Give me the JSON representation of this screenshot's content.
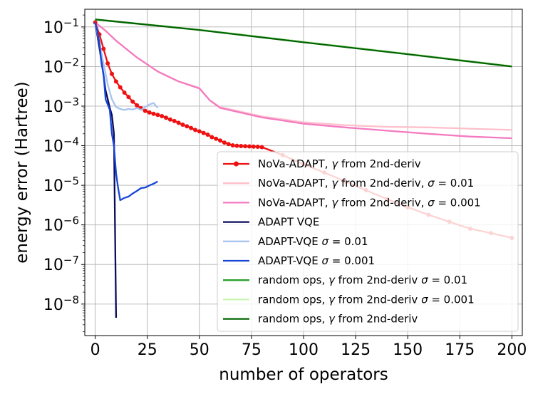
{
  "chart_data": {
    "type": "line",
    "title": "",
    "xlabel": "number of operators",
    "ylabel": "energy error (Hartree)",
    "yscale": "log",
    "xlim": [
      -5,
      205
    ],
    "ylim": [
      1.6e-09,
      0.28
    ],
    "grid": true,
    "legend_position": "lower-right",
    "x_ticks": [
      0,
      25,
      50,
      75,
      100,
      125,
      150,
      175,
      200
    ],
    "y_ticks": [
      {
        "value": 0.1,
        "base": "10",
        "exp": "−1"
      },
      {
        "value": 0.01,
        "base": "10",
        "exp": "−2"
      },
      {
        "value": 0.001,
        "base": "10",
        "exp": "−3"
      },
      {
        "value": 0.0001,
        "base": "10",
        "exp": "−4"
      },
      {
        "value": 1e-05,
        "base": "10",
        "exp": "−5"
      },
      {
        "value": 1e-06,
        "base": "10",
        "exp": "−6"
      },
      {
        "value": 1e-07,
        "base": "10",
        "exp": "−7"
      },
      {
        "value": 1e-08,
        "base": "10",
        "exp": "−8"
      }
    ],
    "series": [
      {
        "id": "nova-sigma001",
        "name": "NoVa-ADAPT, γ from 2nd-deriv, σ = 0.01",
        "color": "#ffc0cb",
        "marker": false,
        "x": [
          0,
          5,
          10,
          20,
          30,
          40,
          50,
          55,
          60,
          80,
          100,
          120,
          140,
          160,
          180,
          200
        ],
        "y": [
          0.13,
          0.08,
          0.045,
          0.017,
          0.0075,
          0.0042,
          0.0029,
          0.0014,
          0.00095,
          0.00055,
          0.00039,
          0.00033,
          0.0003,
          0.00029,
          0.00027,
          0.00025
        ]
      },
      {
        "id": "nova-sigma0001",
        "name": "NoVa-ADAPT, γ from 2nd-deriv, σ = 0.001",
        "color": "#f47ac0",
        "marker": false,
        "x": [
          0,
          5,
          10,
          20,
          30,
          40,
          50,
          55,
          60,
          80,
          100,
          120,
          140,
          160,
          180,
          200
        ],
        "y": [
          0.13,
          0.08,
          0.045,
          0.017,
          0.0075,
          0.0042,
          0.0028,
          0.0014,
          0.0009,
          0.00052,
          0.00036,
          0.00029,
          0.00024,
          0.0002,
          0.00017,
          0.000155
        ]
      },
      {
        "id": "nova",
        "name": "NoVa-ADAPT, γ from 2nd-deriv",
        "color": "#ee1111",
        "marker": true,
        "x": [
          0,
          2,
          4,
          6,
          8,
          10,
          12,
          14,
          16,
          18,
          20,
          22,
          24,
          26,
          28,
          30,
          32,
          34,
          36,
          38,
          40,
          42,
          44,
          46,
          48,
          50,
          52,
          54,
          56,
          58,
          60,
          62,
          64,
          66,
          68,
          70,
          72,
          74,
          76,
          78,
          80,
          90,
          100,
          110,
          120,
          130,
          140,
          150,
          160,
          170,
          180,
          190,
          200
        ],
        "y": [
          0.13,
          0.065,
          0.028,
          0.012,
          0.0065,
          0.0042,
          0.003,
          0.0022,
          0.0017,
          0.0013,
          0.00105,
          0.00088,
          0.00076,
          0.00069,
          0.00064,
          0.0006,
          0.00056,
          0.00051,
          0.00046,
          0.00042,
          0.00038,
          0.00034,
          0.00031,
          0.00028,
          0.00025,
          0.00023,
          0.00021,
          0.00019,
          0.000165,
          0.00015,
          0.000135,
          0.00012,
          0.00011,
          0.000102,
          9.95e-05,
          9.8e-05,
          9.7e-05,
          9.6e-05,
          9.5e-05,
          9.4e-05,
          9.2e-05,
          5.8e-05,
          3.4e-05,
          2.1e-05,
          1.25e-05,
          7.5e-06,
          4.5e-06,
          2.8e-06,
          1.8e-06,
          1.2e-06,
          8e-07,
          6.2e-07,
          4.7e-07
        ]
      },
      {
        "id": "adapt-vqe",
        "name": "ADAPT VQE",
        "color": "#0b0b5c",
        "marker": false,
        "x": [
          0,
          2,
          4,
          5,
          6,
          7,
          8,
          9,
          10
        ],
        "y": [
          0.13,
          0.03,
          0.006,
          0.0025,
          0.0015,
          0.0009,
          0.0006,
          0.0002,
          4.5e-09
        ]
      },
      {
        "id": "adapt-sigma001",
        "name": "ADAPT-VQE σ = 0.01",
        "color": "#a8c4f0",
        "marker": false,
        "x": [
          0,
          2,
          4,
          6,
          8,
          10,
          12,
          14,
          16,
          18,
          20,
          22,
          24,
          26,
          28,
          30
        ],
        "y": [
          0.13,
          0.04,
          0.012,
          0.0035,
          0.0015,
          0.00095,
          0.00085,
          0.0008,
          0.00085,
          0.00082,
          0.0009,
          0.0008,
          0.00095,
          0.0011,
          0.0012,
          0.0009
        ]
      },
      {
        "id": "adapt-sigma0001",
        "name": "ADAPT-VQE σ = 0.001",
        "color": "#1846d8",
        "marker": false,
        "x": [
          0,
          1,
          2,
          3,
          4,
          5,
          6,
          7,
          8,
          9,
          10,
          11,
          12,
          14,
          16,
          18,
          20,
          22,
          24,
          26,
          28,
          30
        ],
        "y": [
          0.13,
          0.08,
          0.04,
          0.012,
          0.0065,
          0.0015,
          0.0011,
          0.0008,
          0.0002,
          0.0001,
          2e-05,
          8.5e-06,
          4.2e-06,
          4.8e-06,
          5.2e-06,
          6.2e-06,
          7.2e-06,
          8.5e-06,
          8.8e-06,
          9.9e-06,
          1.1e-05,
          1.25e-05
        ]
      },
      {
        "id": "random-sigma001",
        "name": "random ops, γ from 2nd-deriv σ = 0.01",
        "color": "#2ca02c",
        "marker": false,
        "x": [
          0,
          50,
          100,
          150,
          200
        ],
        "y": [
          0.155,
          0.085,
          0.042,
          0.021,
          0.0102
        ]
      },
      {
        "id": "random-sigma0001",
        "name": "random ops, γ from 2nd-deriv σ = 0.001",
        "color": "#c8f5b0",
        "marker": false,
        "x": [
          0,
          50,
          100,
          150,
          200
        ],
        "y": [
          0.155,
          0.085,
          0.042,
          0.021,
          0.0102
        ]
      },
      {
        "id": "random",
        "name": "random ops, γ from 2nd-deriv",
        "color": "#006400",
        "marker": false,
        "x": [
          0,
          50,
          100,
          150,
          200
        ],
        "y": [
          0.155,
          0.084,
          0.041,
          0.0205,
          0.01
        ]
      }
    ],
    "legend": [
      {
        "series": "nova",
        "pre": "NoVa-ADAPT, ",
        "math": "γ",
        "post": " from 2nd-deriv"
      },
      {
        "series": "nova-sigma001",
        "pre": "NoVa-ADAPT, ",
        "math": "γ",
        "post": " from 2nd-deriv, ",
        "eq": "σ = 0.01"
      },
      {
        "series": "nova-sigma0001",
        "pre": "NoVa-ADAPT, ",
        "math": "γ",
        "post": " from 2nd-deriv, ",
        "eq": "σ = 0.001"
      },
      {
        "series": "adapt-vqe",
        "pre": "ADAPT VQE"
      },
      {
        "series": "adapt-sigma001",
        "pre": "ADAPT-VQE ",
        "eq": "σ = 0.01"
      },
      {
        "series": "adapt-sigma0001",
        "pre": "ADAPT-VQE ",
        "eq": "σ = 0.001"
      },
      {
        "series": "random-sigma001",
        "pre": "random ops, ",
        "math": "γ",
        "post": " from 2nd-deriv ",
        "eq": "σ = 0.01"
      },
      {
        "series": "random-sigma0001",
        "pre": "random ops, ",
        "math": "γ",
        "post": " from 2nd-deriv ",
        "eq": "σ = 0.001"
      },
      {
        "series": "random",
        "pre": "random ops, ",
        "math": "γ",
        "post": " from 2nd-deriv"
      }
    ]
  }
}
